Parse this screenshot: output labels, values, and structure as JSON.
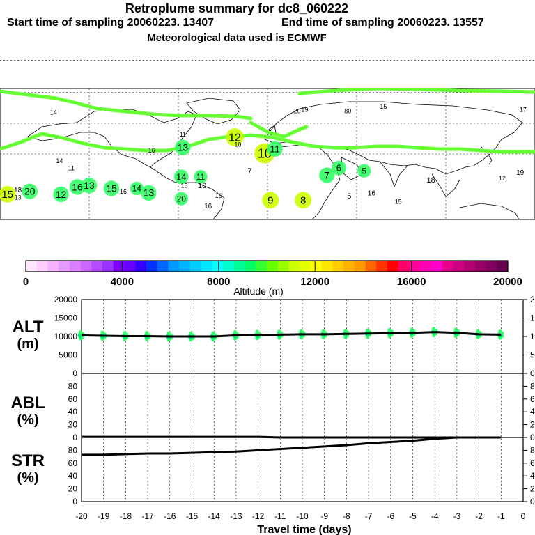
{
  "header": {
    "title": "Retroplume summary for dc8_060222",
    "start": "Start time of sampling 20060223. 13407",
    "end": "End time of sampling 20060223. 13557",
    "met": "Meteorological data used is ECMWF"
  },
  "colorbar": {
    "title": "Altitude (m)",
    "ticks": [
      "0",
      "4000",
      "8000",
      "12000",
      "16000",
      "20000"
    ],
    "colors": [
      "#ffe6ff",
      "#ffccff",
      "#f5b3ff",
      "#e699ff",
      "#d97fff",
      "#cc66ff",
      "#b34dff",
      "#9933ff",
      "#8000ff",
      "#6600ff",
      "#3300ff",
      "#0033ff",
      "#0066ff",
      "#0099ff",
      "#00b3ff",
      "#00ccff",
      "#00e6ff",
      "#00ffff",
      "#00ffcc",
      "#00ff99",
      "#00ff66",
      "#33ff33",
      "#66ff00",
      "#99ff00",
      "#ccff00",
      "#e6ff00",
      "#ffff00",
      "#ffe600",
      "#ffcc00",
      "#ffb300",
      "#ff9900",
      "#ff6600",
      "#ff3300",
      "#ff0000",
      "#ff0066",
      "#ff0099",
      "#ff00b3",
      "#ff00cc",
      "#e6008c",
      "#cc0080",
      "#b30073",
      "#990066",
      "#800060",
      "#660050"
    ]
  },
  "map": {
    "labels": [
      {
        "t": "15",
        "lon": -175,
        "lat": 22,
        "s": 15
      },
      {
        "t": "18",
        "lon": -168,
        "lat": 25,
        "s": 10
      },
      {
        "t": "20",
        "lon": -160,
        "lat": 24,
        "s": 14
      },
      {
        "t": "13",
        "lon": -168,
        "lat": 20,
        "s": 9
      },
      {
        "t": "12",
        "lon": -139,
        "lat": 22,
        "s": 14
      },
      {
        "t": "16",
        "lon": -128,
        "lat": 27,
        "s": 14
      },
      {
        "t": "13",
        "lon": -120,
        "lat": 28,
        "s": 14
      },
      {
        "t": "15",
        "lon": -105,
        "lat": 26,
        "s": 14
      },
      {
        "t": "14",
        "lon": -88,
        "lat": 26,
        "s": 12
      },
      {
        "t": "13",
        "lon": -80,
        "lat": 23,
        "s": 14
      },
      {
        "t": "14",
        "lon": -58,
        "lat": 34,
        "s": 13
      },
      {
        "t": "11",
        "lon": -45,
        "lat": 34,
        "s": 12
      },
      {
        "t": "10",
        "lon": -44,
        "lat": 28,
        "s": 11
      },
      {
        "t": "20",
        "lon": -58,
        "lat": 19,
        "s": 12
      },
      {
        "t": "16",
        "lon": -40,
        "lat": 14,
        "s": 10
      },
      {
        "t": "13",
        "lon": -57,
        "lat": 54,
        "s": 14
      },
      {
        "t": "12",
        "lon": -22,
        "lat": 61,
        "s": 16
      },
      {
        "t": "10",
        "lon": -2,
        "lat": 50,
        "s": 18
      },
      {
        "t": "11",
        "lon": 5,
        "lat": 53,
        "s": 14
      },
      {
        "t": "7",
        "lon": -12,
        "lat": 38,
        "s": 11
      },
      {
        "t": "9",
        "lon": 2,
        "lat": 18,
        "s": 15
      },
      {
        "t": "8",
        "lon": 24,
        "lat": 18,
        "s": 15
      },
      {
        "t": "7",
        "lon": 40,
        "lat": 35,
        "s": 14
      },
      {
        "t": "6",
        "lon": 48,
        "lat": 40,
        "s": 13
      },
      {
        "t": "5",
        "lon": 65,
        "lat": 38,
        "s": 12
      },
      {
        "t": "5",
        "lon": 55,
        "lat": 21,
        "s": 11
      },
      {
        "t": "16",
        "lon": 70,
        "lat": 23,
        "s": 10
      },
      {
        "t": "18",
        "lon": 110,
        "lat": 32,
        "s": 11
      },
      {
        "t": "19",
        "lon": 170,
        "lat": 37,
        "s": 10
      },
      {
        "t": "12",
        "lon": 158,
        "lat": 33,
        "s": 9
      },
      {
        "t": "14",
        "lon": -140,
        "lat": 45,
        "s": 9
      },
      {
        "t": "16",
        "lon": -78,
        "lat": 52,
        "s": 9
      },
      {
        "t": "11",
        "lon": -57,
        "lat": 63,
        "s": 9
      },
      {
        "t": "10",
        "lon": -20,
        "lat": 56,
        "s": 9
      },
      {
        "t": "14",
        "lon": -144,
        "lat": 78,
        "s": 9
      },
      {
        "t": "20",
        "lon": 20,
        "lat": 79,
        "s": 9
      },
      {
        "t": "19",
        "lon": 25,
        "lat": 80,
        "s": 9
      },
      {
        "t": "15",
        "lon": 78,
        "lat": 82,
        "s": 9
      },
      {
        "t": "17",
        "lon": 172,
        "lat": 80,
        "s": 9
      },
      {
        "t": "80",
        "lon": 54,
        "lat": 79,
        "s": 9
      },
      {
        "t": "15",
        "lon": -56,
        "lat": 28,
        "s": 9
      },
      {
        "t": "16",
        "lon": -33,
        "lat": 21,
        "s": 9
      },
      {
        "t": "15",
        "lon": 88,
        "lat": 17,
        "s": 9
      },
      {
        "t": "16",
        "lon": -97,
        "lat": 24,
        "s": 9
      },
      {
        "t": "11",
        "lon": -132,
        "lat": 40,
        "s": 9
      }
    ]
  },
  "panel": {
    "alt_label": "ALT",
    "alt_unit": "(m)",
    "abl_label": "ABL",
    "abl_unit": "(%)",
    "str_label": "STR",
    "str_unit": "(%)",
    "alt_ticks": [
      "0",
      "5000",
      "10000",
      "15000",
      "20000"
    ],
    "pct_ticks": [
      "0",
      "20",
      "40",
      "60",
      "80"
    ],
    "x_ticks": [
      "-20",
      "-19",
      "-18",
      "-17",
      "-16",
      "-15",
      "-14",
      "-13",
      "-12",
      "-11",
      "-10",
      "-9",
      "-8",
      "-7",
      "-6",
      "-5",
      "-4",
      "-3",
      "-2",
      "-1",
      "0"
    ],
    "x_label": "Travel time (days)"
  },
  "chart_data": {
    "type": "line",
    "x": [
      -20,
      -19,
      -18,
      -17,
      -16,
      -15,
      -14,
      -13,
      -12,
      -11,
      -10,
      -9,
      -8,
      -7,
      -6,
      -5,
      -4,
      -3,
      -2,
      -1
    ],
    "xlim": [
      -20,
      0
    ],
    "xlabel": "Travel time (days)",
    "series": [
      {
        "name": "ALT (m)",
        "ylim": [
          0,
          20000
        ],
        "values": [
          10300,
          10200,
          10100,
          10100,
          10000,
          10000,
          10000,
          10300,
          10400,
          10500,
          10600,
          10600,
          10700,
          10800,
          10900,
          11000,
          11200,
          11000,
          10600,
          10500
        ]
      },
      {
        "name": "ABL (%)",
        "ylim": [
          0,
          100
        ],
        "values": [
          1,
          1,
          1,
          1,
          1,
          1,
          1,
          1,
          1,
          0,
          0,
          0,
          0,
          0,
          0,
          0,
          0,
          0,
          0,
          0
        ]
      },
      {
        "name": "STR (%)",
        "ylim": [
          0,
          100
        ],
        "values": [
          73,
          73,
          74,
          75,
          75,
          76,
          77,
          78,
          80,
          82,
          84,
          86,
          88,
          91,
          93,
          95,
          98,
          100,
          100,
          100
        ]
      }
    ]
  }
}
